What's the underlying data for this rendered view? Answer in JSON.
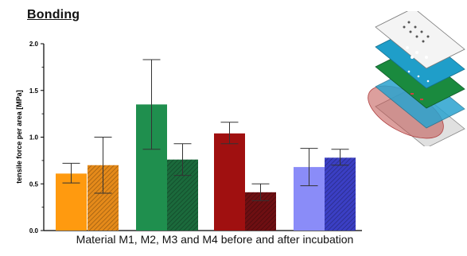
{
  "title": "Bonding",
  "caption": "Material M1, M2, M3 and M4 before and after incubation",
  "chart_data": {
    "type": "bar",
    "ylabel": "tensile force per area [MPa]",
    "xlabel": "",
    "ylim": [
      0,
      2.0
    ],
    "yticks": [
      "0.0",
      "0.5",
      "1.0",
      "1.5",
      "2.0"
    ],
    "grid": false,
    "groups": [
      "M1",
      "M2",
      "M3",
      "M4"
    ],
    "bars": [
      {
        "group": "M1",
        "condition": "before",
        "value": 0.61,
        "err_low": 0.51,
        "err_high": 0.72,
        "color": "#ff9a0f",
        "hatch": false
      },
      {
        "group": "M1",
        "condition": "after",
        "value": 0.7,
        "err_low": 0.4,
        "err_high": 1.0,
        "color": "#e58a1a",
        "hatch": true
      },
      {
        "group": "M2",
        "condition": "before",
        "value": 1.35,
        "err_low": 0.87,
        "err_high": 1.83,
        "color": "#1f8f4e",
        "hatch": false
      },
      {
        "group": "M2",
        "condition": "after",
        "value": 0.76,
        "err_low": 0.59,
        "err_high": 0.93,
        "color": "#1b6a3c",
        "hatch": true
      },
      {
        "group": "M3",
        "condition": "before",
        "value": 1.04,
        "err_low": 0.93,
        "err_high": 1.16,
        "color": "#a01010",
        "hatch": false
      },
      {
        "group": "M3",
        "condition": "after",
        "value": 0.41,
        "err_low": 0.32,
        "err_high": 0.5,
        "color": "#6e0f12",
        "hatch": true
      },
      {
        "group": "M4",
        "condition": "before",
        "value": 0.68,
        "err_low": 0.48,
        "err_high": 0.88,
        "color": "#8a8cf8",
        "hatch": false
      },
      {
        "group": "M4",
        "condition": "after",
        "value": 0.78,
        "err_low": 0.7,
        "err_high": 0.87,
        "color": "#3b3fc4",
        "hatch": true
      }
    ]
  },
  "illustration": {
    "name": "layered-bonding-stack-illustration",
    "layer_colors": [
      "#f2f2f2",
      "#1f9ec9",
      "#1a8a3e",
      "#1f9ec9",
      "#d9d9d9"
    ],
    "highlight_color": "#c0504d"
  }
}
